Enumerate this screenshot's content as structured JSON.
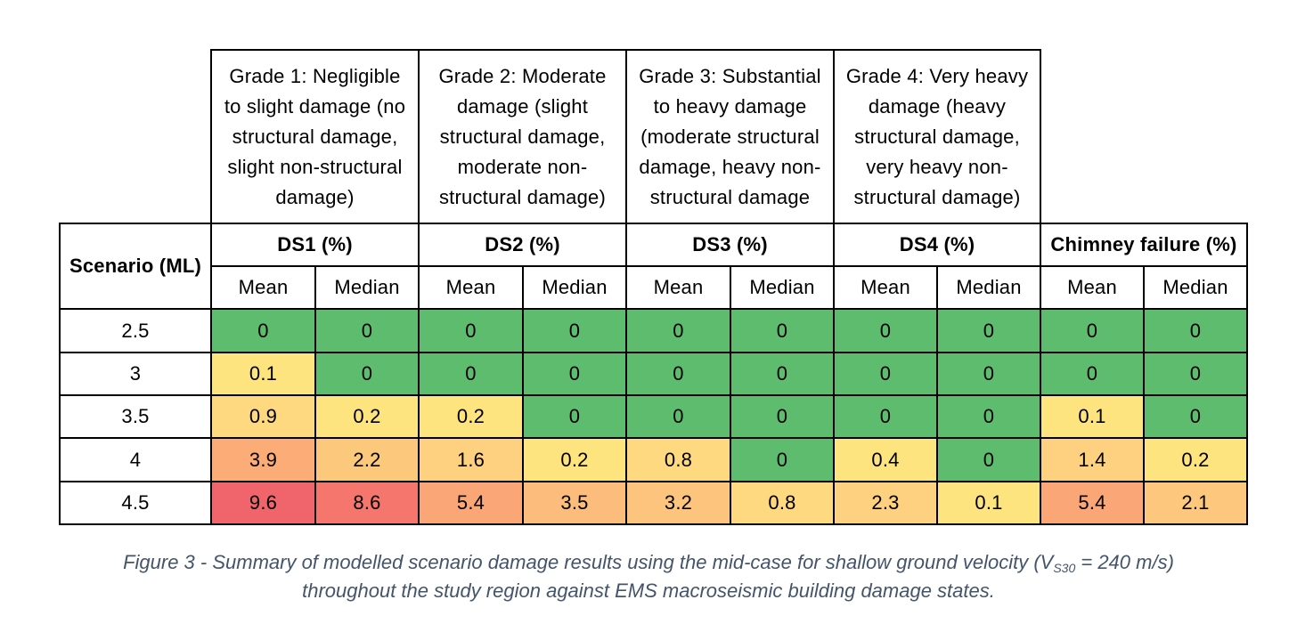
{
  "colors": {
    "green": "#5ebc6f",
    "yellow": "#fde47f",
    "orange": "#fcbc7c",
    "red": "#f0646b",
    "caption": "#44546a"
  },
  "table": {
    "grade_headers": [
      "Grade 1: Negligible to slight damage (no structural damage, slight non-structural damage)",
      "Grade 2: Moderate damage (slight structural damage, moderate non-structural damage)",
      "Grade 3: Substantial to heavy damage (moderate structural damage, heavy non-structural damage",
      "Grade 4: Very heavy damage (heavy structural damage, very heavy non-structural damage)"
    ],
    "grade_header_lines": [
      "Grade 1: Negligible\nto slight damage (no\nstructural damage,\nslight non-structural\ndamage)",
      "Grade 2: Moderate\ndamage (slight\nstructural damage,\nmoderate non-\nstructural damage)",
      "Grade 3: Substantial\nto heavy damage\n(moderate structural\ndamage, heavy non-\nstructural damage",
      "Grade 4: Very heavy\ndamage (heavy\nstructural damage,\nvery heavy non-\nstructural damage)"
    ],
    "scenario_header": "Scenario (ML)",
    "group_headers": [
      "DS1 (%)",
      "DS2 (%)",
      "DS3 (%)",
      "DS4 (%)",
      "Chimney failure (%)"
    ],
    "sub_headers": [
      "Mean",
      "Median",
      "Mean",
      "Median",
      "Mean",
      "Median",
      "Mean",
      "Median",
      "Mean",
      "Median"
    ],
    "rows": [
      {
        "scenario": "2.5",
        "values": [
          "0",
          "0",
          "0",
          "0",
          "0",
          "0",
          "0",
          "0",
          "0",
          "0"
        ]
      },
      {
        "scenario": "3",
        "values": [
          "0.1",
          "0",
          "0",
          "0",
          "0",
          "0",
          "0",
          "0",
          "0",
          "0"
        ]
      },
      {
        "scenario": "3.5",
        "values": [
          "0.9",
          "0.2",
          "0.2",
          "0",
          "0",
          "0",
          "0",
          "0",
          "0.1",
          "0"
        ]
      },
      {
        "scenario": "4",
        "values": [
          "3.9",
          "2.2",
          "1.6",
          "0.2",
          "0.8",
          "0",
          "0.4",
          "0",
          "1.4",
          "0.2"
        ]
      },
      {
        "scenario": "4.5",
        "values": [
          "9.6",
          "8.6",
          "5.4",
          "3.5",
          "3.2",
          "0.8",
          "2.3",
          "0.1",
          "5.4",
          "2.1"
        ]
      }
    ],
    "cell_colors": [
      [
        "#5ebc6f",
        "#5ebc6f",
        "#5ebc6f",
        "#5ebc6f",
        "#5ebc6f",
        "#5ebc6f",
        "#5ebc6f",
        "#5ebc6f",
        "#5ebc6f",
        "#5ebc6f"
      ],
      [
        "#fde47f",
        "#5ebc6f",
        "#5ebc6f",
        "#5ebc6f",
        "#5ebc6f",
        "#5ebc6f",
        "#5ebc6f",
        "#5ebc6f",
        "#5ebc6f",
        "#5ebc6f"
      ],
      [
        "#fed980",
        "#fde47f",
        "#fde47f",
        "#5ebc6f",
        "#5ebc6f",
        "#5ebc6f",
        "#5ebc6f",
        "#5ebc6f",
        "#fde47f",
        "#5ebc6f"
      ],
      [
        "#fbac77",
        "#fcc97c",
        "#fdd17f",
        "#fde47f",
        "#fed980",
        "#5ebc6f",
        "#fde47f",
        "#5ebc6f",
        "#fdd17f",
        "#fde47f"
      ],
      [
        "#f0646b",
        "#f4766c",
        "#fba676",
        "#fcbc7c",
        "#fdc47d",
        "#fed980",
        "#fdd17f",
        "#fde47f",
        "#fba676",
        "#fdc87d"
      ]
    ]
  },
  "caption": {
    "line1_pre": "Figure 3 - Summary of modelled scenario damage results using the mid-case for shallow ground velocity (V",
    "line1_sub": "S30",
    "line1_post": " = 240 m/s)",
    "line2": "throughout the study region against EMS macroseismic building damage states."
  }
}
